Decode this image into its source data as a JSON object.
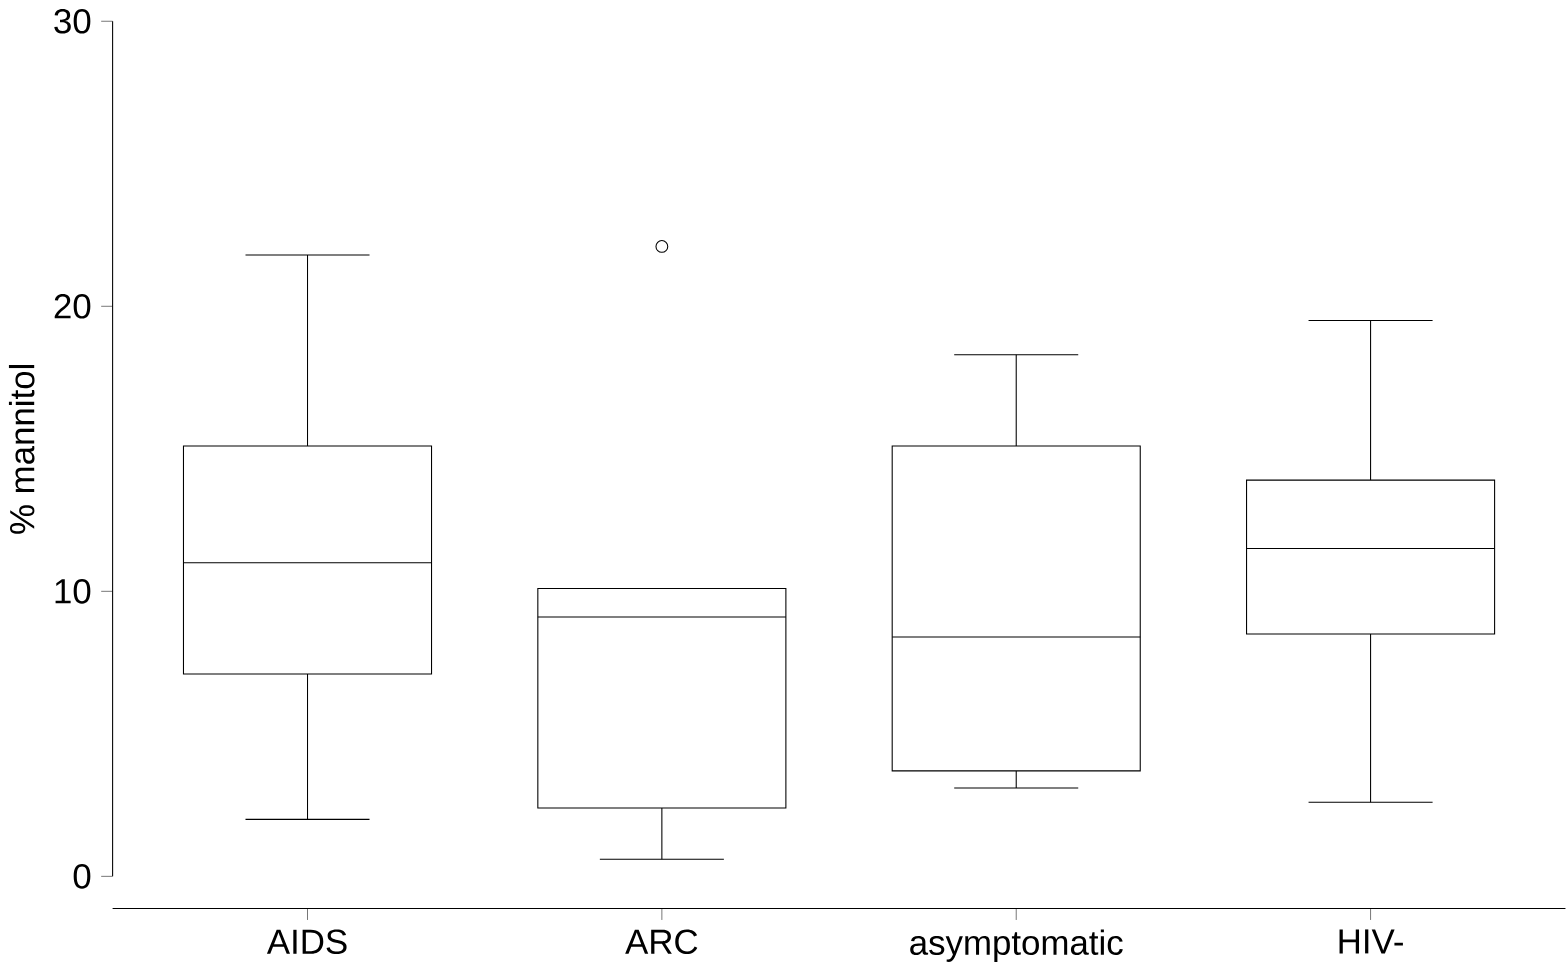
{
  "chart_data": {
    "type": "box",
    "ylabel": "% mannitol",
    "categories": [
      "AIDS",
      "ARC",
      "asymptomatic",
      "HIV-"
    ],
    "boxes": [
      {
        "low": 2.0,
        "q1": 7.1,
        "median": 11.0,
        "q3": 15.1,
        "high": 21.8
      },
      {
        "low": 0.6,
        "q1": 2.4,
        "median": 9.1,
        "q3": 10.1,
        "high": 10.1,
        "outliers": [
          22.1
        ]
      },
      {
        "low": 3.1,
        "q1": 3.7,
        "median": 8.4,
        "q3": 15.1,
        "high": 18.3
      },
      {
        "low": 2.6,
        "q1": 8.5,
        "median": 11.5,
        "q3": 13.9,
        "high": 19.5
      }
    ],
    "ylim": [
      0,
      30
    ],
    "yticks": [
      0,
      10,
      20,
      30
    ],
    "color": "#000000",
    "marker": "circle"
  }
}
